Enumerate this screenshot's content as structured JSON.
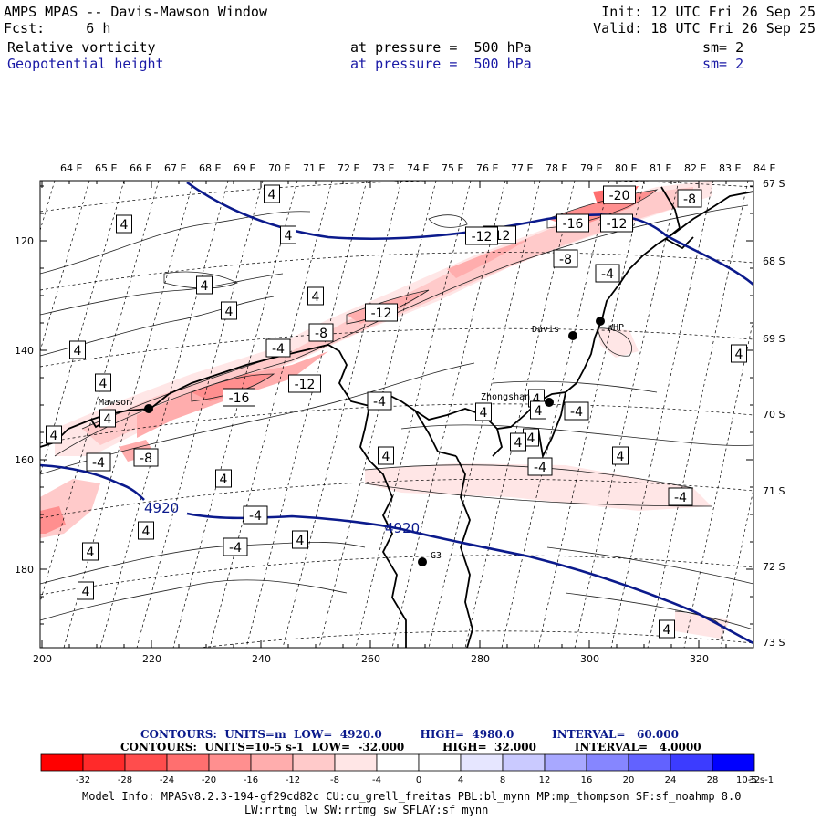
{
  "header": {
    "title": "AMPS MPAS -- Davis-Mawson Window",
    "init": "Init: 12 UTC Fri 26 Sep 25",
    "forecast": "Fcst:     6 h",
    "valid": "Valid: 18 UTC Fri 26 Sep 25",
    "field1": {
      "name": "Relative vorticity",
      "level": "at pressure =  500 hPa",
      "smoothing": "sm= 2"
    },
    "field2": {
      "name": "Geopotential height",
      "level": "at pressure =  500 hPa",
      "smoothing": "sm= 2"
    }
  },
  "map": {
    "lon_labels": [
      "64 E",
      "65 E",
      "66 E",
      "67 E",
      "68 E",
      "69 E",
      "70 E",
      "71 E",
      "72 E",
      "73 E",
      "74 E",
      "75 E",
      "76 E",
      "77 E",
      "78 E",
      "79 E",
      "80 E",
      "81 E",
      "82 E",
      "83 E",
      "84 E"
    ],
    "lat_labels": [
      {
        "label": "67 S"
      },
      {
        "label": "68 S"
      },
      {
        "label": "69 S"
      },
      {
        "label": "70 S"
      },
      {
        "label": "71 S"
      },
      {
        "label": "72 S"
      },
      {
        "label": "73 S"
      }
    ],
    "y_ticks": [
      120,
      140,
      160,
      180
    ],
    "x_ticks": [
      200,
      220,
      240,
      260,
      280,
      300,
      320
    ],
    "stations": [
      {
        "name": "Mawson"
      },
      {
        "name": "Davis"
      },
      {
        "name": "WHP"
      },
      {
        "name": "Zhongshan"
      },
      {
        "name": "G3"
      }
    ],
    "height_contour_labels": [
      "4920",
      "4920"
    ],
    "vorticity_labels": [
      "4",
      "4",
      "4",
      "4",
      "4",
      "4",
      "4",
      "-4",
      "-8",
      "-12",
      "-16",
      "-12",
      "-8",
      "-12",
      "-16",
      "-12",
      "-20",
      "-8",
      "-12",
      "-4",
      "-8",
      "-4",
      "-4",
      "4",
      "4",
      "4",
      "4",
      "4",
      "4",
      "-4",
      "-4",
      "4",
      "4",
      "4",
      "-4",
      "4",
      "4",
      "4",
      "4",
      "4",
      "4",
      "-4",
      "-4",
      "4",
      "4"
    ],
    "colors": {
      "height": "#0b1a8c",
      "coast": "#000000",
      "grid": "#000000"
    }
  },
  "footer": {
    "height_line": "CONTOURS:  UNITS=m  LOW=  4920.0          HIGH=  4980.0          INTERVAL=   60.000",
    "vort_line": "CONTOURS:  UNITS=10-5 s-1  LOW=  -32.000          HIGH=  32.000          INTERVAL=   4.0000",
    "colorbar": {
      "ticks": [
        "-32",
        "-28",
        "-24",
        "-20",
        "-16",
        "-12",
        "-8",
        "-4",
        "0",
        "4",
        "8",
        "12",
        "16",
        "20",
        "24",
        "28",
        "32"
      ],
      "units": "10-5 s-1",
      "colors": [
        "#ff0000",
        "#ff2a2a",
        "#ff4d4d",
        "#ff6f6f",
        "#ff8f8f",
        "#ffadad",
        "#ffcaca",
        "#ffe6e6",
        "#ffffff",
        "#ffffff",
        "#e6e6ff",
        "#cacaff",
        "#a8a8ff",
        "#8686ff",
        "#6262ff",
        "#3c3cff",
        "#0000ff"
      ]
    },
    "model_info_1": "Model Info: MPASv8.2.3-194-gf29cd82c CU:cu_grell_freitas PBL:bl_mynn MP:mp_thompson SF:sf_noahmp 8.0",
    "model_info_2": "LW:rrtmg_lw SW:rrtmg_sw SFLAY:sf_mynn"
  }
}
